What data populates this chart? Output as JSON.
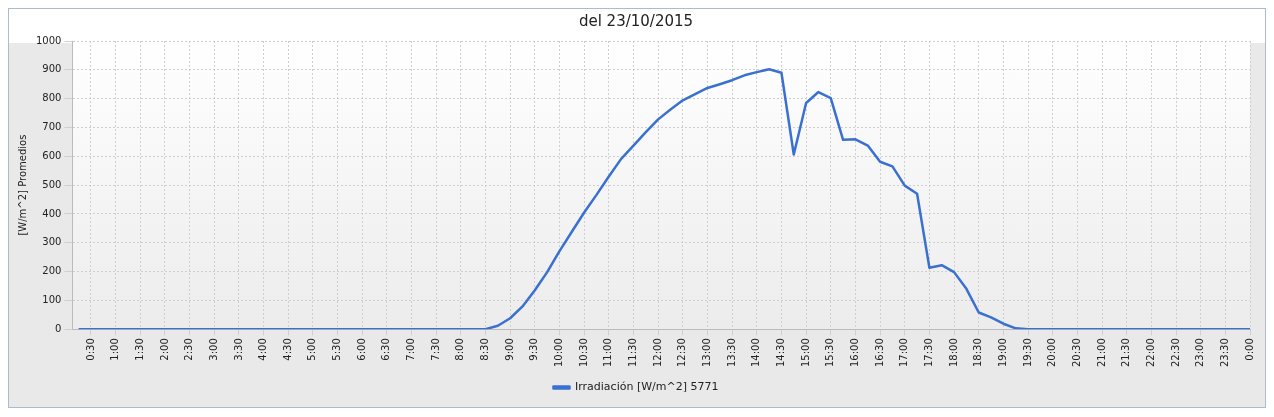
{
  "chart_data": {
    "type": "line",
    "title": "del 23/10/2015",
    "ylabel": "[W/m^2] Promedios",
    "x": [
      0.25,
      8.5,
      8.75,
      9,
      9.25,
      9.5,
      9.75,
      10,
      10.25,
      10.5,
      10.75,
      11,
      11.25,
      11.5,
      11.75,
      12,
      12.25,
      12.5,
      12.75,
      13,
      13.25,
      13.5,
      13.75,
      14,
      14.25,
      14.5,
      14.75,
      15,
      15.25,
      15.5,
      15.75,
      16,
      16.25,
      16.5,
      16.75,
      17,
      17.25,
      17.5,
      17.75,
      18,
      18.25,
      18.5,
      18.75,
      19,
      19.25,
      19.5,
      24
    ],
    "series": [
      {
        "name": "Irradiación [W/m^2] 5771",
        "color": "#3a70d0",
        "values": [
          0,
          0,
          12,
          38,
          79,
          135,
          198,
          271,
          338,
          405,
          466,
          530,
          591,
          637,
          684,
          728,
          762,
          794,
          816,
          837,
          850,
          864,
          881,
          892,
          902,
          890,
          606,
          785,
          823,
          802,
          657,
          659,
          637,
          581,
          565,
          498,
          470,
          213,
          222,
          198,
          140,
          58,
          41,
          19,
          3,
          0,
          0
        ]
      }
    ],
    "xlim": [
      0.125,
      24
    ],
    "xticks": [
      {
        "value": 0.5,
        "label": "0:30"
      },
      {
        "value": 1,
        "label": "1:00"
      },
      {
        "value": 1.5,
        "label": "1:30"
      },
      {
        "value": 2,
        "label": "2:00"
      },
      {
        "value": 2.5,
        "label": "2:30"
      },
      {
        "value": 3,
        "label": "3:00"
      },
      {
        "value": 3.5,
        "label": "3:30"
      },
      {
        "value": 4,
        "label": "4:00"
      },
      {
        "value": 4.5,
        "label": "4:30"
      },
      {
        "value": 5,
        "label": "5:00"
      },
      {
        "value": 5.5,
        "label": "5:30"
      },
      {
        "value": 6,
        "label": "6:00"
      },
      {
        "value": 6.5,
        "label": "6:30"
      },
      {
        "value": 7,
        "label": "7:00"
      },
      {
        "value": 7.5,
        "label": "7:30"
      },
      {
        "value": 8,
        "label": "8:00"
      },
      {
        "value": 8.5,
        "label": "8:30"
      },
      {
        "value": 9,
        "label": "9:00"
      },
      {
        "value": 9.5,
        "label": "9:30"
      },
      {
        "value": 10,
        "label": "10:00"
      },
      {
        "value": 10.5,
        "label": "10:30"
      },
      {
        "value": 11,
        "label": "11:00"
      },
      {
        "value": 11.5,
        "label": "11:30"
      },
      {
        "value": 12,
        "label": "12:00"
      },
      {
        "value": 12.5,
        "label": "12:30"
      },
      {
        "value": 13,
        "label": "13:00"
      },
      {
        "value": 13.5,
        "label": "13:30"
      },
      {
        "value": 14,
        "label": "14:00"
      },
      {
        "value": 14.5,
        "label": "14:30"
      },
      {
        "value": 15,
        "label": "15:00"
      },
      {
        "value": 15.5,
        "label": "15:30"
      },
      {
        "value": 16,
        "label": "16:00"
      },
      {
        "value": 16.5,
        "label": "16:30"
      },
      {
        "value": 17,
        "label": "17:00"
      },
      {
        "value": 17.5,
        "label": "17:30"
      },
      {
        "value": 18,
        "label": "18:00"
      },
      {
        "value": 18.5,
        "label": "18:30"
      },
      {
        "value": 19,
        "label": "19:00"
      },
      {
        "value": 19.5,
        "label": "19:30"
      },
      {
        "value": 20,
        "label": "20:00"
      },
      {
        "value": 20.5,
        "label": "20:30"
      },
      {
        "value": 21,
        "label": "21:00"
      },
      {
        "value": 21.5,
        "label": "21:30"
      },
      {
        "value": 22,
        "label": "22:00"
      },
      {
        "value": 22.5,
        "label": "22:30"
      },
      {
        "value": 23,
        "label": "23:00"
      },
      {
        "value": 23.5,
        "label": "23:30"
      },
      {
        "value": 24,
        "label": "0:00"
      }
    ],
    "ylim": [
      0,
      1000
    ],
    "yticks": [
      0,
      100,
      200,
      300,
      400,
      500,
      600,
      700,
      800,
      900,
      1000
    ],
    "grid": true,
    "legend": "bottom",
    "marker": "none",
    "line_style": "solid"
  }
}
